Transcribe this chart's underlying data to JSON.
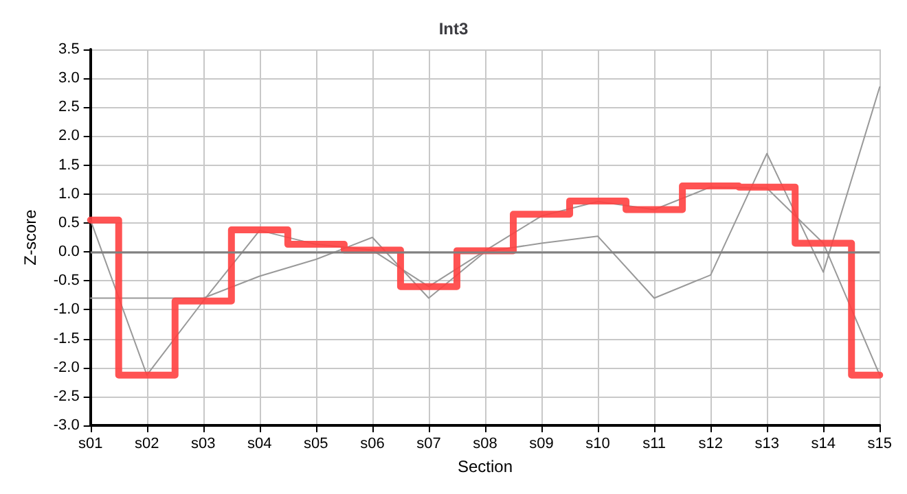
{
  "chart_data": {
    "type": "line",
    "title": "Int3",
    "xlabel": "Section",
    "ylabel": "Z-score",
    "categories": [
      "s01",
      "s02",
      "s03",
      "s04",
      "s05",
      "s06",
      "s07",
      "s08",
      "s09",
      "s10",
      "s11",
      "s12",
      "s13",
      "s14",
      "s15"
    ],
    "series": [
      {
        "color": "#999999",
        "values": [
          -0.8,
          -0.8,
          -0.8,
          -0.42,
          -0.13,
          0.25,
          -0.8,
          0.0,
          0.15,
          0.27,
          -0.8,
          -0.4,
          1.7,
          -0.35,
          2.85
        ]
      },
      {
        "color": "#999999",
        "values": [
          0.55,
          -2.13,
          -0.85,
          0.37,
          0.13,
          0.03,
          -0.6,
          0.02,
          0.62,
          0.87,
          0.73,
          1.12,
          1.1,
          0.15,
          -2.13
        ]
      },
      {
        "type": "step",
        "color": "#ff4040",
        "values": [
          0.55,
          -2.13,
          -0.85,
          0.38,
          0.13,
          0.03,
          -0.6,
          0.02,
          0.65,
          0.88,
          0.73,
          1.14,
          1.12,
          0.15,
          -2.13
        ]
      }
    ],
    "ylim": [
      -3,
      3.5
    ],
    "yticks": [
      {
        "value": -3,
        "label": "-3.0"
      },
      {
        "value": -2.5,
        "label": "-2.5"
      },
      {
        "value": -2,
        "label": "-2.0"
      },
      {
        "value": -1.5,
        "label": "-1.5"
      },
      {
        "value": -1,
        "label": "-1.0"
      },
      {
        "value": -0.5,
        "label": "-0.5"
      },
      {
        "value": 0,
        "label": "0.0"
      },
      {
        "value": 0.5,
        "label": "0.5"
      },
      {
        "value": 1,
        "label": "1.0"
      },
      {
        "value": 1.5,
        "label": "1.5"
      },
      {
        "value": 2,
        "label": "2.0"
      },
      {
        "value": 2.5,
        "label": "2.5"
      },
      {
        "value": 3,
        "label": "3.0"
      },
      {
        "value": 3.5,
        "label": "3.5"
      }
    ],
    "ref_lines": [
      {
        "axis": "y",
        "value": 0,
        "color": "#808080"
      }
    ],
    "grid": true,
    "marker": "none",
    "line_style": "solid"
  }
}
